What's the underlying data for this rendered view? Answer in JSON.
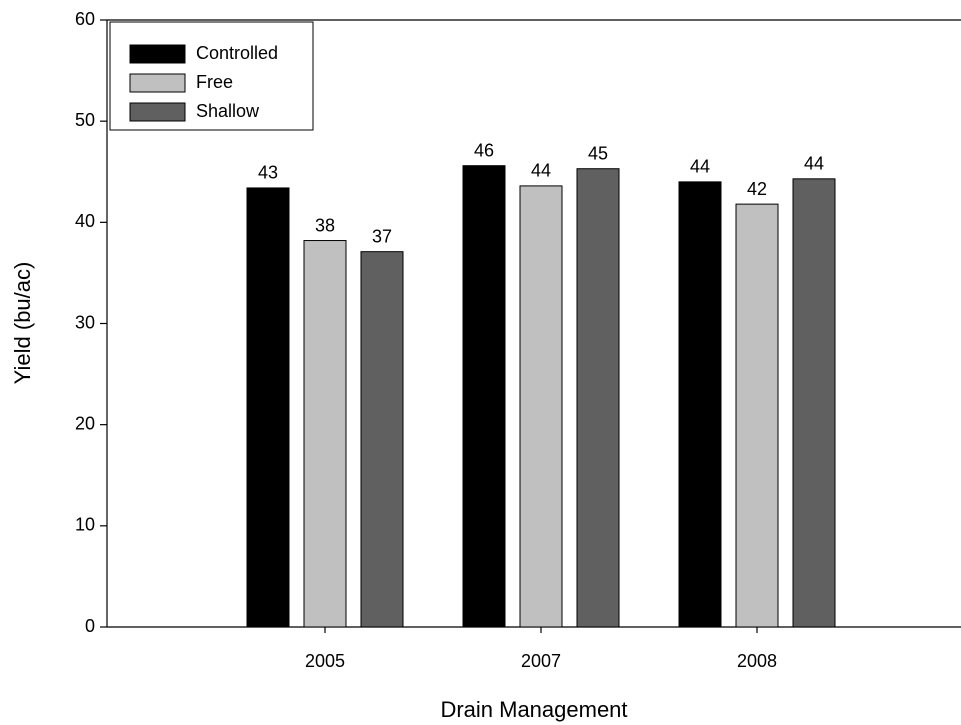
{
  "chart_data": {
    "type": "bar",
    "xlabel": "Drain Management",
    "ylabel": "Yield (bu/ac)",
    "categories": [
      "2005",
      "2007",
      "2008"
    ],
    "series": [
      {
        "name": "Controlled",
        "color": "#000000",
        "values": [
          43.4,
          45.6,
          44.0
        ],
        "value_labels": [
          "43",
          "46",
          "44"
        ]
      },
      {
        "name": "Free",
        "color": "#c0c0c0",
        "values": [
          38.2,
          43.6,
          41.8
        ],
        "value_labels": [
          "38",
          "44",
          "42"
        ]
      },
      {
        "name": "Shallow",
        "color": "#606060",
        "values": [
          37.1,
          45.3,
          44.3
        ],
        "value_labels": [
          "37",
          "45",
          "44"
        ]
      }
    ],
    "ylim": [
      0,
      60
    ],
    "yticks": [
      0,
      10,
      20,
      30,
      40,
      50,
      60
    ],
    "legend": "upper-left"
  }
}
